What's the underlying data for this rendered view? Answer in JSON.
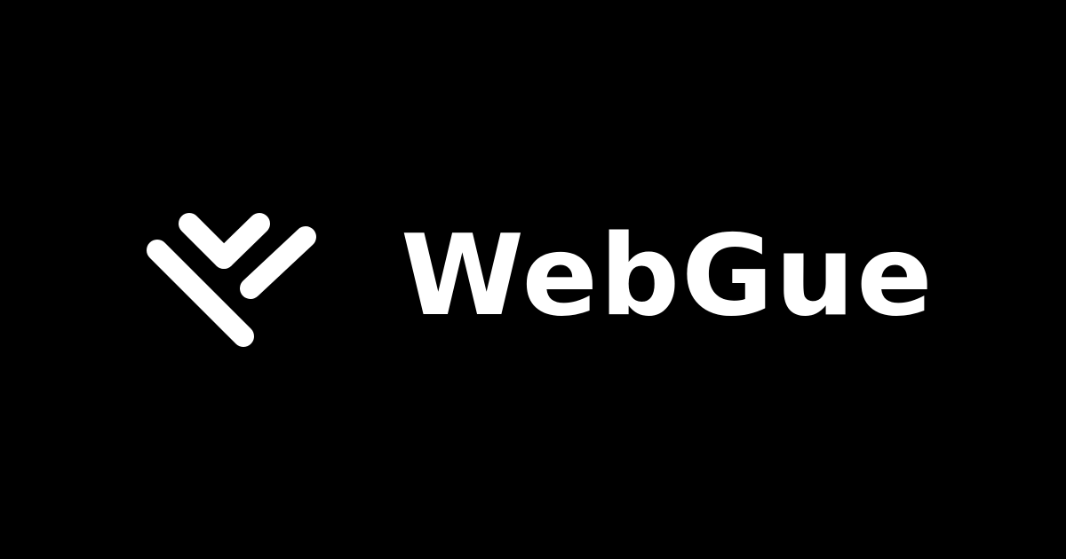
{
  "brand": {
    "name": "WebGue",
    "logo_icon": "webgue-logo-icon"
  },
  "colors": {
    "background": "#000000",
    "foreground": "#ffffff"
  }
}
